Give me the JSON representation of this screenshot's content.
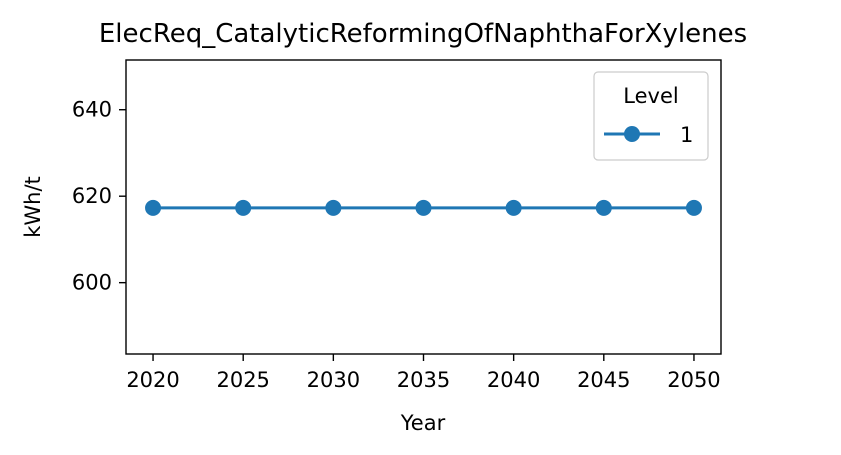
{
  "chart_data": {
    "type": "line",
    "title": "ElecReq_CatalyticReformingOfNaphthaForXylenes",
    "xlabel": "Year",
    "ylabel": "kWh/t",
    "x": [
      2020,
      2025,
      2030,
      2035,
      2040,
      2045,
      2050
    ],
    "x_ticks": [
      "2020",
      "2025",
      "2030",
      "2035",
      "2040",
      "2045",
      "2050"
    ],
    "y_ticks": [
      "600",
      "620",
      "640"
    ],
    "xlim": [
      2018.5,
      2051.5
    ],
    "ylim": [
      583.5,
      651.5
    ],
    "series": [
      {
        "name": "1",
        "values": [
          617.3,
          617.3,
          617.3,
          617.3,
          617.3,
          617.3,
          617.3
        ],
        "color": "#1f77b4",
        "marker": "circle"
      }
    ],
    "legend": {
      "title": "Level",
      "position": "top-right"
    },
    "grid": false
  }
}
